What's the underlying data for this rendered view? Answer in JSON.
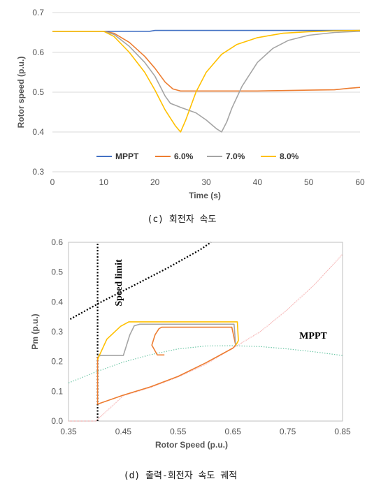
{
  "chart_data": [
    {
      "type": "line",
      "xlabel": "Time (s)",
      "ylabel": "Rotor speed (p.u.)",
      "xlim": [
        0,
        60
      ],
      "ylim": [
        0.3,
        0.7
      ],
      "xticks": [
        "0",
        "10",
        "20",
        "30",
        "40",
        "50",
        "60"
      ],
      "yticks": [
        "0.3",
        "0.4",
        "0.5",
        "0.6",
        "0.7"
      ],
      "grid": "horizontal",
      "legend_position": "bottom-inside",
      "caption": "(c) 회전자 속도",
      "series": [
        {
          "name": "MPPT",
          "color": "#4472c4",
          "x": [
            0,
            10,
            19,
            20,
            60
          ],
          "y": [
            0.653,
            0.653,
            0.653,
            0.655,
            0.655
          ]
        },
        {
          "name": "6.0%",
          "color": "#ed7d31",
          "x": [
            0,
            10,
            12,
            15,
            18,
            20,
            22,
            23.5,
            25,
            30,
            35,
            40,
            45,
            50,
            55,
            58,
            60
          ],
          "y": [
            0.653,
            0.653,
            0.648,
            0.625,
            0.59,
            0.56,
            0.525,
            0.508,
            0.503,
            0.503,
            0.503,
            0.503,
            0.504,
            0.505,
            0.506,
            0.51,
            0.512
          ]
        },
        {
          "name": "7.0%",
          "color": "#a5a5a5",
          "x": [
            0,
            10,
            12,
            15,
            18,
            20,
            21,
            22,
            23,
            25,
            28,
            30,
            32,
            33,
            34,
            35,
            37,
            40,
            43,
            46,
            50,
            55,
            60
          ],
          "y": [
            0.653,
            0.653,
            0.645,
            0.615,
            0.575,
            0.54,
            0.515,
            0.49,
            0.472,
            0.462,
            0.448,
            0.43,
            0.408,
            0.4,
            0.425,
            0.46,
            0.515,
            0.575,
            0.61,
            0.63,
            0.643,
            0.65,
            0.653
          ]
        },
        {
          "name": "8.0%",
          "color": "#ffc000",
          "x": [
            0,
            10,
            12,
            15,
            18,
            20,
            22,
            24,
            25,
            26,
            28,
            30,
            33,
            36,
            40,
            45,
            50,
            55,
            60
          ],
          "y": [
            0.653,
            0.653,
            0.64,
            0.6,
            0.55,
            0.505,
            0.455,
            0.415,
            0.4,
            0.43,
            0.5,
            0.55,
            0.595,
            0.62,
            0.637,
            0.648,
            0.652,
            0.654,
            0.655
          ]
        }
      ]
    },
    {
      "type": "line",
      "xlabel": "Rotor Speed (p.u.)",
      "ylabel": "Pm (p.u.)",
      "xlim": [
        0.35,
        0.85
      ],
      "ylim": [
        0.0,
        0.6
      ],
      "xticks": [
        "0.35",
        "0.45",
        "0.55",
        "0.65",
        "0.75",
        "0.85"
      ],
      "yticks": [
        "0.0",
        "0.1",
        "0.2",
        "0.3",
        "0.4",
        "0.5",
        "0.6"
      ],
      "caption": "(d) 출력-회전자 속도 궤적",
      "annotations": [
        {
          "text": "Speed limit"
        },
        {
          "text": "MPPT"
        }
      ],
      "series": [
        {
          "style": "dotted",
          "color": "#000000",
          "x": [
            0.353,
            0.41,
            0.47,
            0.53,
            0.59,
            0.61
          ],
          "y": [
            0.342,
            0.4,
            0.456,
            0.513,
            0.575,
            0.6
          ]
        },
        {
          "style": "dotted",
          "color": "#000000",
          "x": [
            0.403,
            0.403
          ],
          "y": [
            0.0,
            0.6
          ]
        },
        {
          "style": "thin",
          "color": "#f4a6a6",
          "x": [
            0.35,
            0.4,
            0.45,
            0.5,
            0.55,
            0.6,
            0.65,
            0.7,
            0.75,
            0.8,
            0.85
          ],
          "y": [
            0.0,
            0.0,
            0.085,
            0.113,
            0.148,
            0.19,
            0.245,
            0.3,
            0.375,
            0.46,
            0.56
          ]
        },
        {
          "style": "dotted",
          "color": "#70c8a8",
          "x": [
            0.35,
            0.4,
            0.45,
            0.5,
            0.55,
            0.6,
            0.65,
            0.7,
            0.75,
            0.8,
            0.85
          ],
          "y": [
            0.128,
            0.165,
            0.198,
            0.223,
            0.242,
            0.252,
            0.253,
            0.25,
            0.242,
            0.232,
            0.22
          ]
        },
        {
          "color": "#ed7d31",
          "x": [
            0.403,
            0.403,
            0.45,
            0.5,
            0.55,
            0.6,
            0.65,
            0.655
          ],
          "y": [
            0.215,
            0.057,
            0.087,
            0.115,
            0.15,
            0.195,
            0.245,
            0.255
          ]
        },
        {
          "color": "#ed7d31",
          "x": [
            0.655,
            0.648,
            0.52,
            0.515,
            0.508,
            0.502,
            0.512,
            0.525
          ],
          "y": [
            0.255,
            0.315,
            0.315,
            0.31,
            0.29,
            0.255,
            0.222,
            0.222
          ]
        },
        {
          "color": "#a5a5a5",
          "x": [
            0.655,
            0.652,
            0.48,
            0.47,
            0.462,
            0.45,
            0.41,
            0.403
          ],
          "y": [
            0.255,
            0.325,
            0.325,
            0.32,
            0.29,
            0.22,
            0.22,
            0.218
          ]
        },
        {
          "color": "#ffc000",
          "x": [
            0.655,
            0.657,
            0.66,
            0.658,
            0.46,
            0.445,
            0.42,
            0.405,
            0.403
          ],
          "y": [
            0.255,
            0.26,
            0.27,
            0.333,
            0.333,
            0.318,
            0.275,
            0.215,
            0.205
          ]
        }
      ]
    }
  ]
}
